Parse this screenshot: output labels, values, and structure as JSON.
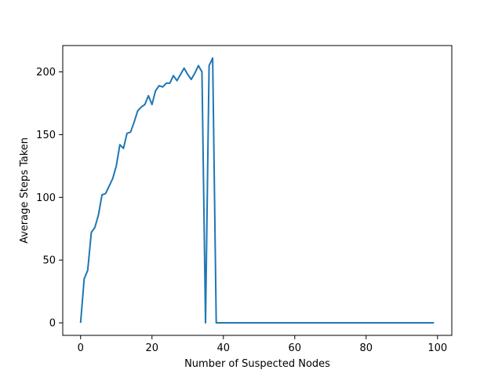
{
  "chart_data": {
    "type": "line",
    "title": "",
    "xlabel": "Number of Suspected Nodes",
    "ylabel": "Average Steps Taken",
    "xlim": [
      -5,
      104
    ],
    "ylim": [
      -10,
      221
    ],
    "xticks": [
      0,
      20,
      40,
      60,
      80,
      100
    ],
    "yticks": [
      0,
      50,
      100,
      150,
      200
    ],
    "grid": false,
    "series": [
      {
        "color": "#1f77b4",
        "x": [
          0,
          1,
          2,
          3,
          4,
          5,
          6,
          7,
          8,
          9,
          10,
          11,
          12,
          13,
          14,
          15,
          16,
          17,
          18,
          19,
          20,
          21,
          22,
          23,
          24,
          25,
          26,
          27,
          28,
          29,
          30,
          31,
          32,
          33,
          34,
          35,
          36,
          37,
          38,
          39,
          40,
          41,
          42,
          43,
          44,
          45,
          46,
          47,
          48,
          49,
          50,
          51,
          52,
          53,
          54,
          55,
          56,
          57,
          58,
          59,
          60,
          61,
          62,
          63,
          64,
          65,
          66,
          67,
          68,
          69,
          70,
          71,
          72,
          73,
          74,
          75,
          76,
          77,
          78,
          79,
          80,
          81,
          82,
          83,
          84,
          85,
          86,
          87,
          88,
          89,
          90,
          91,
          92,
          93,
          94,
          95,
          96,
          97,
          98,
          99
        ],
        "y": [
          0,
          35,
          42,
          72,
          76,
          86,
          102,
          103,
          109,
          115,
          125,
          142,
          139,
          151,
          152,
          160,
          169,
          172,
          174,
          181,
          174,
          185,
          189,
          188,
          191,
          191,
          197,
          193,
          198,
          203,
          198,
          194,
          199,
          205,
          200,
          0,
          205,
          211,
          0,
          0,
          0,
          0,
          0,
          0,
          0,
          0,
          0,
          0,
          0,
          0,
          0,
          0,
          0,
          0,
          0,
          0,
          0,
          0,
          0,
          0,
          0,
          0,
          0,
          0,
          0,
          0,
          0,
          0,
          0,
          0,
          0,
          0,
          0,
          0,
          0,
          0,
          0,
          0,
          0,
          0,
          0,
          0,
          0,
          0,
          0,
          0,
          0,
          0,
          0,
          0,
          0,
          0,
          0,
          0,
          0,
          0,
          0,
          0,
          0,
          0
        ]
      }
    ]
  }
}
